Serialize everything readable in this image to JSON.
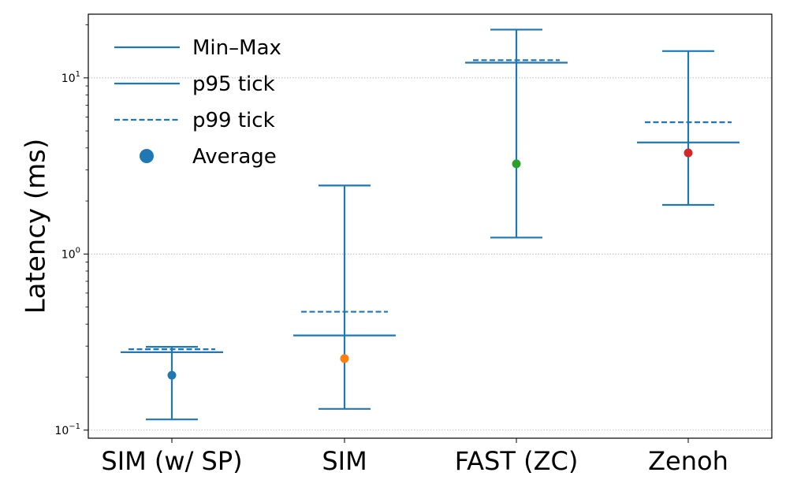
{
  "chart_data": {
    "type": "errorbar",
    "title": "",
    "xlabel": "",
    "ylabel": "Latency (ms)",
    "yscale": "log",
    "ylim": [
      0.09,
      23
    ],
    "categories": [
      "SIM (w/ SP)",
      "SIM",
      "FAST (ZC)",
      "Zenoh"
    ],
    "min": [
      0.115,
      0.132,
      1.24,
      1.9
    ],
    "max": [
      0.297,
      2.45,
      18.8,
      14.2
    ],
    "p95": [
      0.277,
      0.345,
      12.2,
      4.3
    ],
    "p99": [
      0.288,
      0.47,
      12.6,
      5.6
    ],
    "average": [
      0.205,
      0.255,
      3.25,
      3.75
    ],
    "average_colors": [
      "#1f77b4",
      "#ff7f0e",
      "#2ca02c",
      "#d62728"
    ],
    "line_color": "#1f77b4",
    "yticks": [
      {
        "value": 0.1,
        "base": "10",
        "exp": "−1"
      },
      {
        "value": 1,
        "base": "10",
        "exp": "0"
      },
      {
        "value": 10,
        "base": "10",
        "exp": "1"
      }
    ],
    "grid": "y-major dotted",
    "legend": {
      "position": "top-left",
      "entries": [
        {
          "label": "Min–Max",
          "style": "solid"
        },
        {
          "label": "p95 tick",
          "style": "solid"
        },
        {
          "label": "p99 tick",
          "style": "dashed"
        },
        {
          "label": "Average",
          "style": "marker"
        }
      ]
    }
  }
}
